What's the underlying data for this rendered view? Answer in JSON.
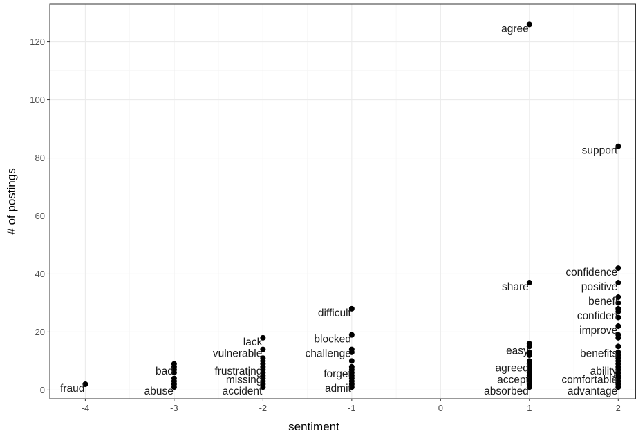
{
  "chart_data": {
    "type": "scatter",
    "xlabel": "sentiment",
    "ylabel": "# of postings",
    "xlim": [
      -4.4,
      2.2
    ],
    "ylim": [
      -3,
      133
    ],
    "x_ticks": [
      -4,
      -3,
      -2,
      -1,
      0,
      1,
      2
    ],
    "y_ticks": [
      0,
      20,
      40,
      60,
      80,
      100,
      120
    ],
    "grid": true,
    "theme": "bw",
    "labels": [
      {
        "text": "agree",
        "x": 1,
        "y": 126
      },
      {
        "text": "support",
        "x": 2,
        "y": 84
      },
      {
        "text": "confidence",
        "x": 2,
        "y": 42
      },
      {
        "text": "share",
        "x": 1,
        "y": 37
      },
      {
        "text": "positive",
        "x": 2,
        "y": 37
      },
      {
        "text": "benefi",
        "x": 2,
        "y": 32
      },
      {
        "text": "difficult",
        "x": -1,
        "y": 28
      },
      {
        "text": "confiden",
        "x": 2,
        "y": 27
      },
      {
        "text": "improve",
        "x": 2,
        "y": 22
      },
      {
        "text": "blocked",
        "x": -1,
        "y": 19
      },
      {
        "text": "lack",
        "x": -2,
        "y": 18
      },
      {
        "text": "easy",
        "x": 1,
        "y": 15
      },
      {
        "text": "vulnerable",
        "x": -2,
        "y": 14
      },
      {
        "text": "challenge",
        "x": -1,
        "y": 14
      },
      {
        "text": "benefits",
        "x": 2,
        "y": 14
      },
      {
        "text": "agreed",
        "x": 1,
        "y": 9
      },
      {
        "text": "bad",
        "x": -3,
        "y": 8
      },
      {
        "text": "frustrating",
        "x": -2,
        "y": 8
      },
      {
        "text": "ability",
        "x": 2,
        "y": 8
      },
      {
        "text": "forget",
        "x": -1,
        "y": 7
      },
      {
        "text": "accept",
        "x": 1,
        "y": 5
      },
      {
        "text": "comfortable",
        "x": 2,
        "y": 5
      },
      {
        "text": "missing",
        "x": -2,
        "y": 5
      },
      {
        "text": "admit",
        "x": -1,
        "y": 2
      },
      {
        "text": "fraud",
        "x": -4,
        "y": 2
      },
      {
        "text": "abuse",
        "x": -3,
        "y": 1
      },
      {
        "text": "accident",
        "x": -2,
        "y": 1
      },
      {
        "text": "absorbed",
        "x": 1,
        "y": 1
      },
      {
        "text": "advantage",
        "x": 2,
        "y": 1
      }
    ],
    "points": [
      [
        -4,
        2
      ],
      [
        -3,
        9
      ],
      [
        -3,
        8
      ],
      [
        -3,
        7
      ],
      [
        -3,
        6
      ],
      [
        -3,
        4
      ],
      [
        -3,
        3
      ],
      [
        -3,
        2
      ],
      [
        -3,
        1
      ],
      [
        -2,
        18
      ],
      [
        -2,
        14
      ],
      [
        -2,
        11
      ],
      [
        -2,
        10
      ],
      [
        -2,
        9
      ],
      [
        -2,
        8
      ],
      [
        -2,
        7
      ],
      [
        -2,
        6
      ],
      [
        -2,
        5
      ],
      [
        -2,
        4
      ],
      [
        -2,
        3
      ],
      [
        -2,
        2
      ],
      [
        -2,
        1
      ],
      [
        -1,
        28
      ],
      [
        -1,
        19
      ],
      [
        -1,
        14
      ],
      [
        -1,
        13
      ],
      [
        -1,
        10
      ],
      [
        -1,
        8
      ],
      [
        -1,
        7
      ],
      [
        -1,
        6
      ],
      [
        -1,
        5
      ],
      [
        -1,
        4
      ],
      [
        -1,
        3
      ],
      [
        -1,
        2
      ],
      [
        -1,
        1
      ],
      [
        1,
        126
      ],
      [
        1,
        37
      ],
      [
        1,
        16
      ],
      [
        1,
        15
      ],
      [
        1,
        13
      ],
      [
        1,
        12
      ],
      [
        1,
        10
      ],
      [
        1,
        9
      ],
      [
        1,
        8
      ],
      [
        1,
        7
      ],
      [
        1,
        6
      ],
      [
        1,
        5
      ],
      [
        1,
        4
      ],
      [
        1,
        3
      ],
      [
        1,
        2
      ],
      [
        1,
        1
      ],
      [
        2,
        84
      ],
      [
        2,
        42
      ],
      [
        2,
        37
      ],
      [
        2,
        32
      ],
      [
        2,
        30
      ],
      [
        2,
        28
      ],
      [
        2,
        27
      ],
      [
        2,
        25
      ],
      [
        2,
        22
      ],
      [
        2,
        19
      ],
      [
        2,
        18
      ],
      [
        2,
        15
      ],
      [
        2,
        13
      ],
      [
        2,
        12
      ],
      [
        2,
        11
      ],
      [
        2,
        10
      ],
      [
        2,
        9
      ],
      [
        2,
        8
      ],
      [
        2,
        7
      ],
      [
        2,
        6
      ],
      [
        2,
        5
      ],
      [
        2,
        4
      ],
      [
        2,
        3
      ],
      [
        2,
        2
      ],
      [
        2,
        1
      ]
    ]
  }
}
